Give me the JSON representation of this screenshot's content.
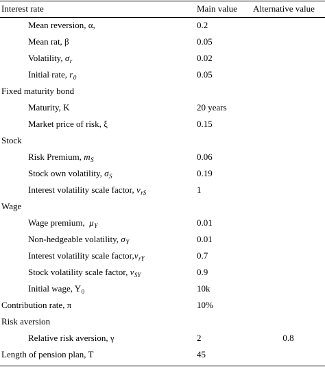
{
  "header": {
    "label": "Interest rate",
    "main": "Main value",
    "alt": "Alternative value"
  },
  "rows": [
    {
      "label": "Mean reversion, α,",
      "sym": "",
      "sub": "",
      "main": "0.2",
      "alt": ""
    },
    {
      "label": "Mean rat, β",
      "sym": "",
      "sub": "",
      "main": "0.05",
      "alt": ""
    },
    {
      "label": "Volatility, ",
      "sym": "σ",
      "sub": "r",
      "main": "0.02",
      "alt": ""
    },
    {
      "label": "Initial rate, ",
      "sym": "r",
      "sub": "0",
      "main": "0.05",
      "alt": ""
    },
    {
      "label": "Fixed maturity bond",
      "sym": "",
      "sub": "",
      "main": "",
      "alt": ""
    },
    {
      "label": "Maturity, K",
      "sym": "",
      "sub": "",
      "main": "20 years",
      "alt": ""
    },
    {
      "label": "Market price of risk, ξ",
      "sym": "",
      "sub": "",
      "main": "0.15",
      "alt": ""
    },
    {
      "label": "Stock",
      "sym": "",
      "sub": "",
      "main": "",
      "alt": ""
    },
    {
      "label": "Risk Premium, ",
      "sym": "m",
      "sub": "S",
      "main": "0.06",
      "alt": ""
    },
    {
      "label": "Stock own volatility, ",
      "sym": "σ",
      "sub": "S",
      "main": "0.19",
      "alt": ""
    },
    {
      "label": "Interest volatility scale factor, ",
      "sym": "ν",
      "sub": "rS",
      "main": "1",
      "alt": ""
    },
    {
      "label": "Wage",
      "sym": "",
      "sub": "",
      "main": "",
      "alt": ""
    },
    {
      "label": "Wage premium,  ",
      "sym": "μ",
      "sub": "Y",
      "main": "0.01",
      "alt": ""
    },
    {
      "label": "Non-hedgeable volatility, ",
      "sym": "σ",
      "sub": "Y",
      "main": "0.01",
      "alt": ""
    },
    {
      "label": "Interest volatility scale factor,",
      "sym": "ν",
      "sub": "rY",
      "main": "0.7",
      "alt": ""
    },
    {
      "label": "Stock volatility scale factor, ",
      "sym": "ν",
      "sub": "SY",
      "main": "0.9",
      "alt": ""
    },
    {
      "label": "Initial wage, Y",
      "sym": "",
      "sub": "0",
      "main": "10k",
      "alt": ""
    },
    {
      "label": "Contribution rate, π",
      "sym": "",
      "sub": "",
      "main": "10%",
      "alt": ""
    },
    {
      "label": "Risk aversion",
      "sym": "",
      "sub": "",
      "main": "",
      "alt": ""
    },
    {
      "label": "Relative risk aversion, γ",
      "sym": "",
      "sub": "",
      "main": "2",
      "alt": "0.8"
    },
    {
      "label": "Length of pension plan, T",
      "sym": "",
      "sub": "",
      "main": "45",
      "alt": ""
    }
  ]
}
